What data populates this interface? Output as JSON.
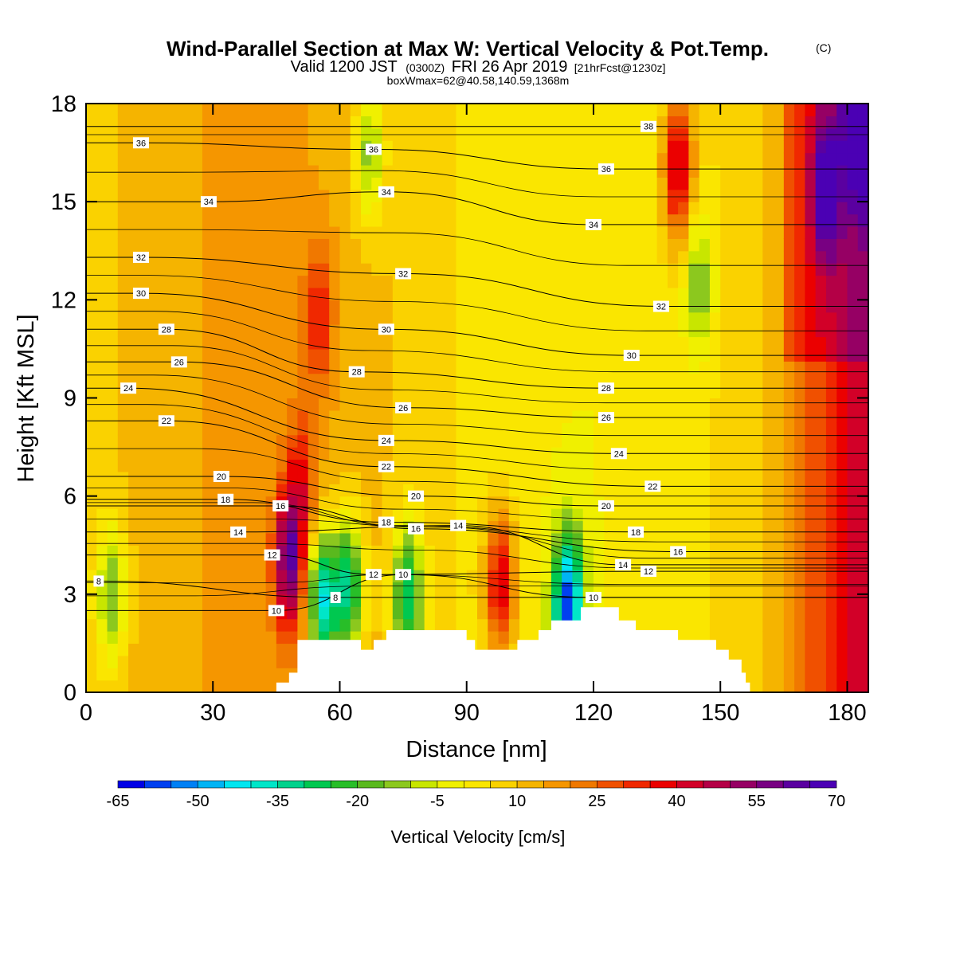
{
  "title": {
    "main": "Wind-Parallel Section at Max W: Vertical Velocity & Pot.Temp.",
    "copyright": "(C)",
    "valid_prefix": "Valid 1200 JST",
    "utc": "(0300Z)",
    "valid_date": "FRI 26 Apr 2019",
    "forecast": "[21hrFcst@1230z]",
    "info": "boxWmax=62@40.58,140.59,1368m"
  },
  "chart_data": {
    "type": "heatmap",
    "xlabel": "Distance [nm]",
    "ylabel": "Height [Kft MSL]",
    "xlim": [
      0,
      185
    ],
    "ylim": [
      0,
      18
    ],
    "x_ticks": [
      0,
      30,
      60,
      90,
      120,
      150,
      180
    ],
    "y_ticks": [
      0,
      3,
      6,
      9,
      12,
      15,
      18
    ],
    "grid": false,
    "colorbar": {
      "title": "Vertical Velocity [cm/s]",
      "placement": "bottom",
      "min": -65,
      "max": 70,
      "step": 5,
      "tick_values": [
        -65,
        -50,
        -35,
        -20,
        -5,
        10,
        25,
        40,
        55,
        70
      ],
      "colors": [
        "#0000e6",
        "#0040f0",
        "#0080f5",
        "#00b4f5",
        "#00e6f0",
        "#00e6c8",
        "#00d28c",
        "#00c850",
        "#28be28",
        "#5ab91e",
        "#8cc81e",
        "#c8e600",
        "#f0f000",
        "#fae600",
        "#fad200",
        "#f5b400",
        "#f59600",
        "#f07800",
        "#f05000",
        "#f02800",
        "#eb0000",
        "#d20028",
        "#b40046",
        "#960064",
        "#780082",
        "#5a00a0",
        "#4b00b4"
      ]
    },
    "contour_field": "Potential Temperature",
    "contour_interval": 2,
    "contour_labels": [
      {
        "value": 8,
        "x": 3,
        "y": 3.4
      },
      {
        "value": 8,
        "x": 59,
        "y": 2.9
      },
      {
        "value": 10,
        "x": 45,
        "y": 2.5
      },
      {
        "value": 10,
        "x": 75,
        "y": 3.6
      },
      {
        "value": 10,
        "x": 120,
        "y": 2.9
      },
      {
        "value": 12,
        "x": 44,
        "y": 4.2
      },
      {
        "value": 12,
        "x": 68,
        "y": 3.6
      },
      {
        "value": 12,
        "x": 133,
        "y": 3.7
      },
      {
        "value": 14,
        "x": 36,
        "y": 4.9
      },
      {
        "value": 14,
        "x": 88,
        "y": 5.1
      },
      {
        "value": 14,
        "x": 127,
        "y": 3.9
      },
      {
        "value": 16,
        "x": 46,
        "y": 5.7
      },
      {
        "value": 16,
        "x": 78,
        "y": 5.0
      },
      {
        "value": 16,
        "x": 140,
        "y": 4.3
      },
      {
        "value": 18,
        "x": 33,
        "y": 5.9
      },
      {
        "value": 18,
        "x": 71,
        "y": 5.2
      },
      {
        "value": 18,
        "x": 130,
        "y": 4.9
      },
      {
        "value": 20,
        "x": 32,
        "y": 6.6
      },
      {
        "value": 20,
        "x": 78,
        "y": 6.0
      },
      {
        "value": 20,
        "x": 123,
        "y": 5.7
      },
      {
        "value": 22,
        "x": 19,
        "y": 8.3
      },
      {
        "value": 22,
        "x": 71,
        "y": 6.9
      },
      {
        "value": 22,
        "x": 134,
        "y": 6.3
      },
      {
        "value": 24,
        "x": 10,
        "y": 9.3
      },
      {
        "value": 24,
        "x": 71,
        "y": 7.7
      },
      {
        "value": 24,
        "x": 126,
        "y": 7.3
      },
      {
        "value": 26,
        "x": 22,
        "y": 10.1
      },
      {
        "value": 26,
        "x": 75,
        "y": 8.7
      },
      {
        "value": 26,
        "x": 123,
        "y": 8.4
      },
      {
        "value": 28,
        "x": 19,
        "y": 11.1
      },
      {
        "value": 28,
        "x": 64,
        "y": 9.8
      },
      {
        "value": 28,
        "x": 123,
        "y": 9.3
      },
      {
        "value": 30,
        "x": 13,
        "y": 12.2
      },
      {
        "value": 30,
        "x": 71,
        "y": 11.1
      },
      {
        "value": 30,
        "x": 129,
        "y": 10.3
      },
      {
        "value": 32,
        "x": 13,
        "y": 13.3
      },
      {
        "value": 32,
        "x": 75,
        "y": 12.8
      },
      {
        "value": 32,
        "x": 136,
        "y": 11.8
      },
      {
        "value": 34,
        "x": 29,
        "y": 15.0
      },
      {
        "value": 34,
        "x": 71,
        "y": 15.3
      },
      {
        "value": 34,
        "x": 120,
        "y": 14.3
      },
      {
        "value": 36,
        "x": 13,
        "y": 16.8
      },
      {
        "value": 36,
        "x": 68,
        "y": 16.6
      },
      {
        "value": 36,
        "x": 123,
        "y": 16.0
      },
      {
        "value": 38,
        "x": 133,
        "y": 17.3
      }
    ],
    "terrain": [
      [
        45,
        0
      ],
      [
        45,
        0.3
      ],
      [
        48,
        0.3
      ],
      [
        48,
        0.6
      ],
      [
        50,
        0.6
      ],
      [
        50,
        1.6
      ],
      [
        65,
        1.6
      ],
      [
        65,
        1.3
      ],
      [
        68,
        1.3
      ],
      [
        68,
        1.6
      ],
      [
        71,
        1.6
      ],
      [
        71,
        1.9
      ],
      [
        90,
        1.9
      ],
      [
        90,
        1.6
      ],
      [
        92,
        1.6
      ],
      [
        92,
        1.3
      ],
      [
        102,
        1.3
      ],
      [
        102,
        1.6
      ],
      [
        107,
        1.6
      ],
      [
        107,
        1.9
      ],
      [
        110,
        1.9
      ],
      [
        110,
        2.2
      ],
      [
        117,
        2.2
      ],
      [
        117,
        2.6
      ],
      [
        126,
        2.6
      ],
      [
        126,
        2.2
      ],
      [
        130,
        2.2
      ],
      [
        130,
        1.9
      ],
      [
        140,
        1.9
      ],
      [
        140,
        1.6
      ],
      [
        149,
        1.6
      ],
      [
        149,
        1.3
      ],
      [
        152,
        1.3
      ],
      [
        152,
        1.0
      ],
      [
        155,
        1.0
      ],
      [
        155,
        0.6
      ],
      [
        156,
        0.6
      ],
      [
        156,
        0.3
      ],
      [
        157,
        0.3
      ],
      [
        157,
        0
      ]
    ],
    "features": [
      {
        "x": 48,
        "y": 4.0,
        "value": 60
      },
      {
        "x": 51,
        "y": 6.5,
        "value": 35
      },
      {
        "x": 55,
        "y": 11.5,
        "value": 35
      },
      {
        "x": 56,
        "y": 2.8,
        "value": -38
      },
      {
        "x": 62,
        "y": 3.2,
        "value": -30
      },
      {
        "x": 76,
        "y": 2.9,
        "value": -30
      },
      {
        "x": 114,
        "y": 2.6,
        "value": -60
      },
      {
        "x": 98,
        "y": 3.3,
        "value": 40
      },
      {
        "x": 140,
        "y": 16.0,
        "value": 45
      },
      {
        "x": 145,
        "y": 12.5,
        "value": -15
      },
      {
        "x": 175,
        "y": 15.5,
        "value": 50
      },
      {
        "x": 183,
        "y": 17.5,
        "value": 65
      },
      {
        "x": 67,
        "y": 16.5,
        "value": -12
      },
      {
        "x": 6,
        "y": 3.0,
        "value": -15
      }
    ]
  }
}
